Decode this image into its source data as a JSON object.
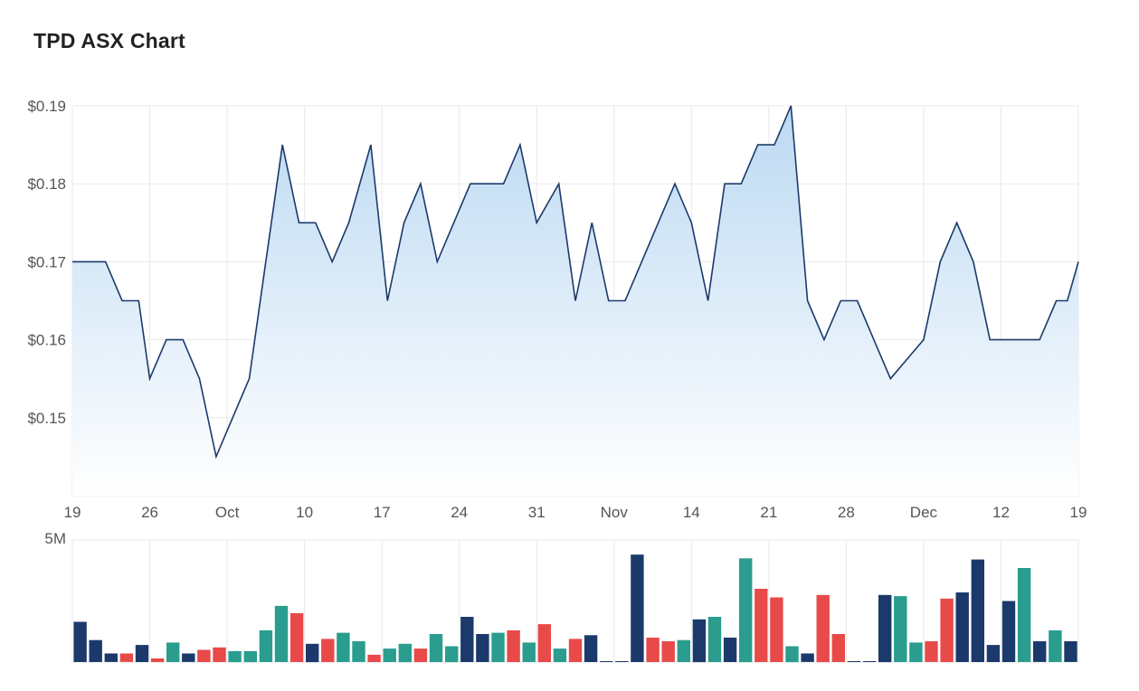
{
  "title": "TPD ASX Chart",
  "colors": {
    "line": "#1b3a6b",
    "area_top": "#bcd9f2",
    "area_bottom": "#ffffff",
    "grid": "#e9e9e9",
    "vol_up": "#2a9d8f",
    "vol_down": "#e84a4a",
    "vol_flat": "#1b3a6b"
  },
  "chart_data": [
    {
      "type": "area",
      "title": "TPD ASX Chart",
      "x_ticks": [
        "19",
        "26",
        "Oct",
        "10",
        "17",
        "24",
        "31",
        "Nov",
        "14",
        "21",
        "28",
        "Dec",
        "12",
        "19"
      ],
      "y_ticks": [
        "$0.19",
        "$0.18",
        "$0.17",
        "$0.16",
        "$0.15"
      ],
      "y_tick_values": [
        0.19,
        0.18,
        0.17,
        0.16,
        0.15
      ],
      "ylim": [
        0.14,
        0.19
      ],
      "x_range_days": [
        0,
        91
      ],
      "grid": true,
      "series": [
        {
          "x_days": [
            0,
            3,
            4.5,
            6,
            7,
            8.5,
            10,
            11.5,
            13,
            14.5,
            16,
            17.5,
            19,
            20.5,
            22,
            23.5,
            25,
            27,
            28.5,
            30,
            31.5,
            33,
            34.5,
            36,
            37.5,
            39,
            40.5,
            42,
            44,
            45.5,
            47,
            48.5,
            50,
            51.5,
            53,
            54.5,
            56,
            57.5,
            59,
            60.5,
            62,
            63.5,
            65,
            66.5,
            68,
            69.5,
            71,
            72.5,
            74,
            77,
            78.5,
            80,
            81.5,
            83,
            84.5,
            86,
            87.5,
            89,
            90,
            91
          ],
          "values": [
            0.17,
            0.17,
            0.165,
            0.165,
            0.155,
            0.16,
            0.16,
            0.155,
            0.145,
            0.15,
            0.155,
            0.17,
            0.185,
            0.175,
            0.175,
            0.17,
            0.175,
            0.185,
            0.165,
            0.175,
            0.18,
            0.17,
            0.175,
            0.18,
            0.18,
            0.18,
            0.185,
            0.175,
            0.18,
            0.165,
            0.175,
            0.165,
            0.165,
            0.17,
            0.175,
            0.18,
            0.175,
            0.165,
            0.18,
            0.18,
            0.185,
            0.185,
            0.19,
            0.165,
            0.16,
            0.165,
            0.165,
            0.16,
            0.155,
            0.16,
            0.17,
            0.175,
            0.17,
            0.16,
            0.16,
            0.16,
            0.16,
            0.165,
            0.165,
            0.17
          ]
        }
      ]
    },
    {
      "type": "bar",
      "y_ticks": [
        "5M"
      ],
      "ylim": [
        0,
        5.0
      ],
      "unit": "M",
      "values": [
        1.65,
        0.9,
        0.35,
        0.35,
        0.7,
        0.15,
        0.8,
        0.35,
        0.5,
        0.6,
        0.45,
        0.45,
        1.3,
        2.3,
        2.0,
        0.75,
        0.95,
        1.2,
        0.85,
        0.3,
        0.55,
        0.75,
        0.55,
        1.15,
        0.65,
        1.85,
        1.15,
        1.2,
        1.3,
        0.8,
        1.55,
        0.55,
        0.95,
        1.1,
        0.02,
        0.02,
        4.4,
        1.0,
        0.85,
        0.9,
        1.75,
        1.85,
        1.0,
        4.25,
        3.0,
        2.65,
        0.65,
        0.35,
        2.75,
        1.15,
        0.02,
        0.02,
        2.75,
        2.7,
        0.8,
        0.85,
        2.6,
        2.85,
        4.2,
        0.7,
        2.5,
        3.85,
        0.85,
        1.3,
        0.85
      ],
      "colors": [
        "flat",
        "flat",
        "flat",
        "down",
        "flat",
        "down",
        "up",
        "flat",
        "down",
        "down",
        "up",
        "up",
        "up",
        "up",
        "down",
        "flat",
        "down",
        "up",
        "up",
        "down",
        "up",
        "up",
        "down",
        "up",
        "up",
        "flat",
        "flat",
        "up",
        "down",
        "up",
        "down",
        "up",
        "down",
        "flat",
        "flat",
        "flat",
        "flat",
        "down",
        "down",
        "up",
        "flat",
        "up",
        "flat",
        "up",
        "down",
        "down",
        "up",
        "flat",
        "down",
        "down",
        "flat",
        "flat",
        "flat",
        "up",
        "up",
        "down",
        "down",
        "flat",
        "flat",
        "flat",
        "flat",
        "up",
        "flat",
        "up",
        "flat"
      ]
    }
  ]
}
